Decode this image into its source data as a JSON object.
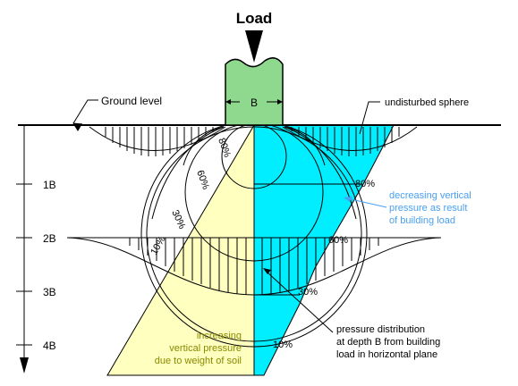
{
  "title": "Load",
  "ground_label": "Ground level",
  "footing_label": "B",
  "sphere_label": "undisturbed sphere",
  "depth_labels": [
    "1B",
    "2B",
    "3B",
    "4B"
  ],
  "bulb_labels": [
    "80%",
    "60%",
    "30%",
    "10%"
  ],
  "right_labels": [
    "80%",
    "60%",
    "30%",
    "10%"
  ],
  "decreasing_note": [
    "decreasing vertical",
    "pressure as result",
    "of building load"
  ],
  "increasing_note": [
    "increasing",
    "vertical pressure",
    "due to weight of soil"
  ],
  "distribution_note": [
    "pressure distribution",
    "at depth B from building",
    "load in horizontal plane"
  ],
  "colors": {
    "soil_weight": "#ffffc0",
    "building_load": "#00eeff",
    "footing": "#8fd98f",
    "note_blue": "#4aa0f0",
    "note_olive": "#8a8a00",
    "line": "#000000"
  }
}
